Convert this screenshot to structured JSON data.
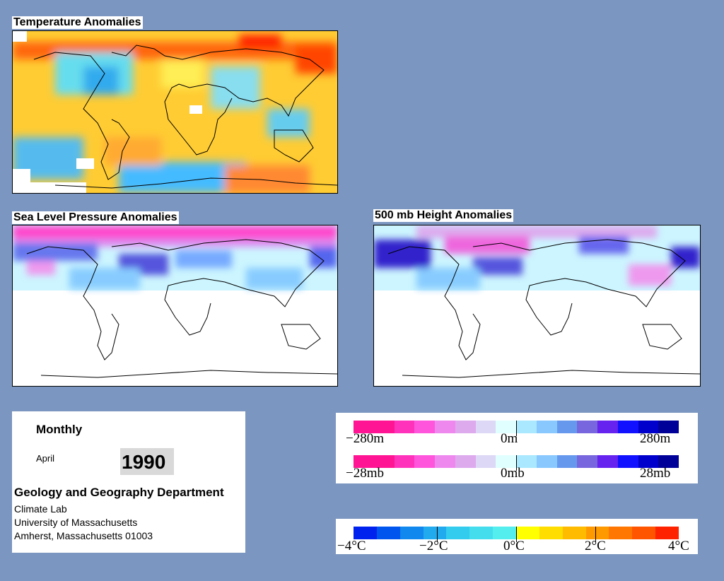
{
  "maps": {
    "temperature": {
      "title": "Temperature Anomalies"
    },
    "slp": {
      "title": "Sea Level Pressure Anomalies"
    },
    "height500": {
      "title": "500 mb Height Anomalies"
    }
  },
  "info": {
    "period": "Monthly",
    "month": "April",
    "year": "1990",
    "department": "Geology and Geography Department",
    "lab": "Climate Lab",
    "university": "University of Massachusetts",
    "address": "Amherst, Massachusetts 01003"
  },
  "legend_height": {
    "labels": [
      "−280m",
      "0m",
      "280m"
    ],
    "colors": [
      "#ff1493",
      "#ff1493",
      "#ff33bb",
      "#ff55dd",
      "#ee88ee",
      "#ddaaee",
      "#ddd8f5",
      "#e0ffff",
      "#aae8ff",
      "#88c8ff",
      "#6699ee",
      "#7766dd",
      "#6622ee",
      "#1111ff",
      "#0000cc",
      "#000099"
    ]
  },
  "legend_pressure": {
    "labels": [
      "−28mb",
      "0mb",
      "28mb"
    ],
    "colors": [
      "#ff1493",
      "#ff1493",
      "#ff33bb",
      "#ff55dd",
      "#ee88ee",
      "#ddaaee",
      "#ddd8f5",
      "#e0ffff",
      "#aae8ff",
      "#88c8ff",
      "#6699ee",
      "#7766dd",
      "#6622ee",
      "#1111ff",
      "#0000cc",
      "#000099"
    ]
  },
  "legend_temperature": {
    "labels": [
      "−4°C",
      "−2°C",
      "0°C",
      "2°C",
      "4°C"
    ],
    "colors": [
      "#0022ee",
      "#0055ee",
      "#1188ee",
      "#22aaee",
      "#33ccee",
      "#44ddee",
      "#55eeee",
      "#ffff00",
      "#ffdd00",
      "#ffbb00",
      "#ff9900",
      "#ff7700",
      "#ff5500",
      "#ff2200"
    ]
  }
}
